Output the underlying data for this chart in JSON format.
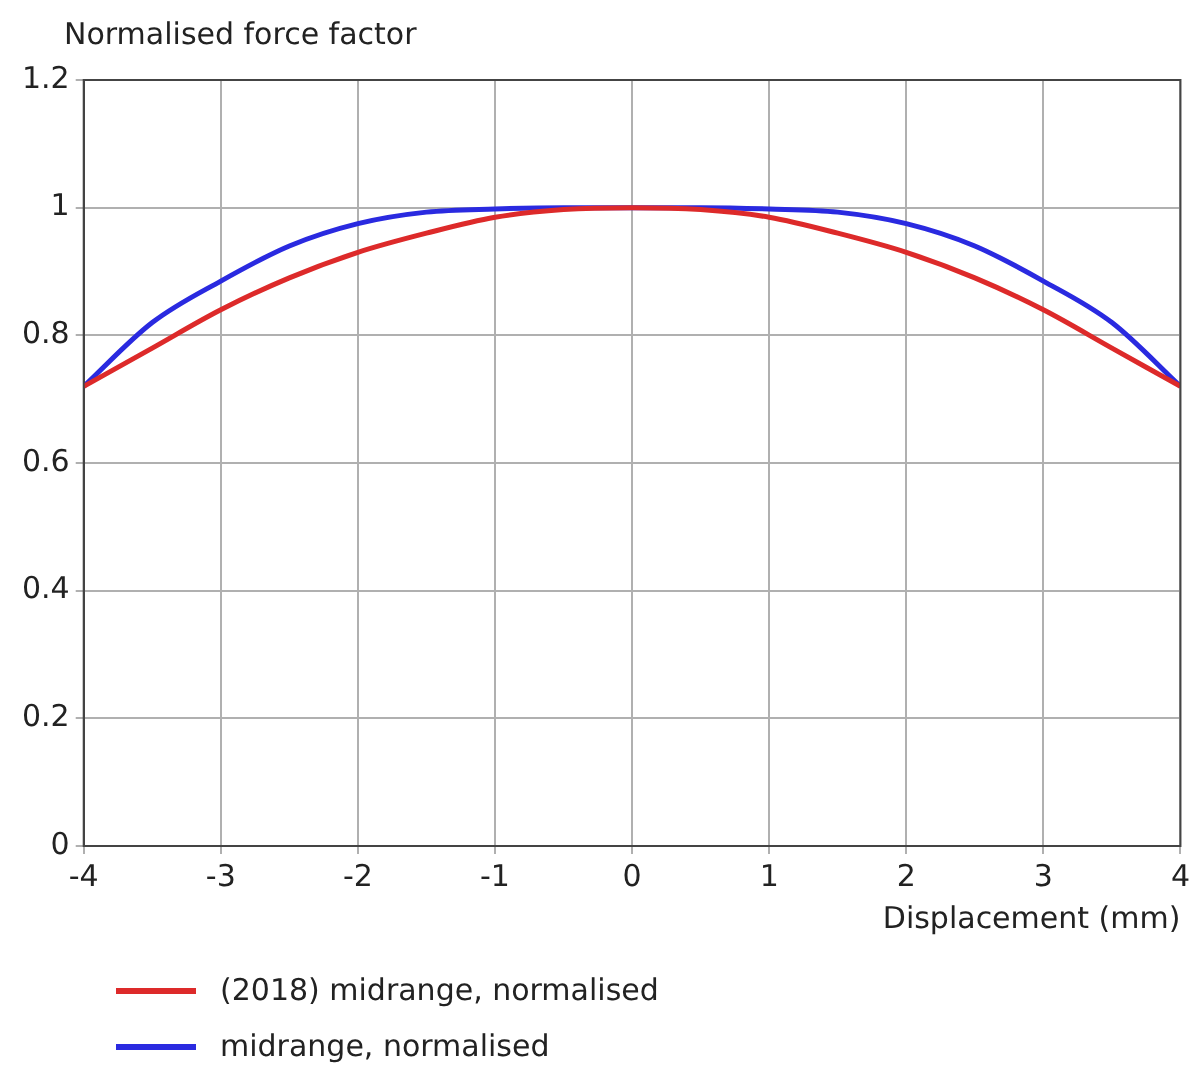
{
  "chart_data": {
    "type": "line",
    "xlabel": "Displacement (mm)",
    "ylabel": "Normalised force factor",
    "xlim": [
      -4,
      4
    ],
    "xticks": [
      -4,
      -3,
      -2,
      -1,
      0,
      1,
      2,
      3,
      4
    ],
    "ylim": [
      0,
      1.2
    ],
    "yticks": [
      0,
      0.2,
      0.4,
      0.6,
      0.8,
      1,
      1.2
    ],
    "grid": true,
    "legend": "bottom",
    "marker": "none",
    "line_style": "solid",
    "series": [
      {
        "name": "(2018) midrange, normalised",
        "color": "#dd2a2a",
        "x": [
          -4,
          -3.5,
          -3,
          -2.5,
          -2,
          -1.5,
          -1,
          -0.5,
          0,
          0.5,
          1,
          1.5,
          2,
          2.5,
          3,
          3.5,
          4
        ],
        "values": [
          0.72,
          0.78,
          0.84,
          0.89,
          0.93,
          0.96,
          0.985,
          0.997,
          1.0,
          0.997,
          0.985,
          0.96,
          0.93,
          0.89,
          0.84,
          0.78,
          0.72
        ]
      },
      {
        "name": "midrange, normalised",
        "color": "#2a2ae0",
        "x": [
          -4,
          -3.5,
          -3,
          -2.5,
          -2,
          -1.5,
          -1,
          -0.5,
          0,
          0.5,
          1,
          1.5,
          2,
          2.5,
          3,
          3.5,
          4
        ],
        "values": [
          0.72,
          0.82,
          0.885,
          0.94,
          0.975,
          0.993,
          0.998,
          1.0,
          1.0,
          1.0,
          0.998,
          0.993,
          0.975,
          0.94,
          0.885,
          0.82,
          0.72
        ]
      }
    ]
  }
}
